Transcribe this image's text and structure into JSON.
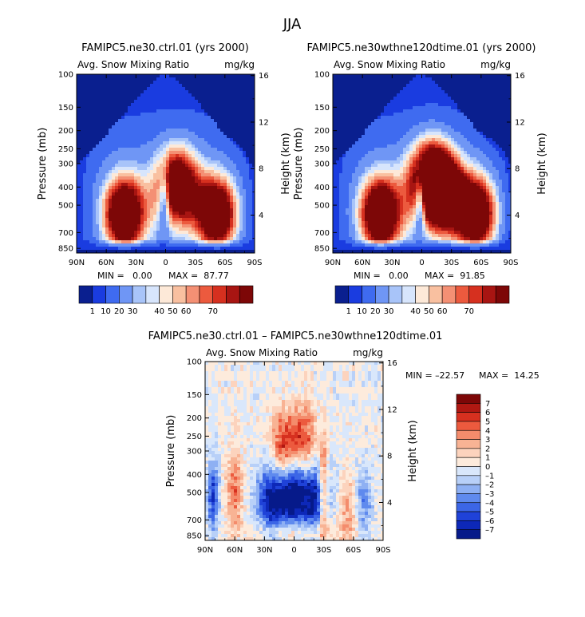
{
  "figure": {
    "season": "JJA"
  },
  "chart_data": [
    {
      "type": "heatmap",
      "title": "FAMIPC5.ne30.ctrl.01 (yrs 2000)",
      "variable": "Avg. Snow Mixing Ratio",
      "units": "mg/kg",
      "xlabel": "",
      "ylabel": "Pressure (mb)",
      "ylabel_right": "Height (km)",
      "x_ticks": [
        "90N",
        "60N",
        "30N",
        "0",
        "30S",
        "60S",
        "90S"
      ],
      "y_ticks": [
        "100",
        "150",
        "200",
        "250",
        "300",
        "400",
        "500",
        "700",
        "850"
      ],
      "y_ticks_right": [
        "16",
        "12",
        "8",
        "4"
      ],
      "min_text": "MIN =   0.00",
      "max_text": "MAX =  87.77",
      "colorbar_labels": [
        "1",
        "10",
        "20",
        "30",
        "40",
        "50",
        "60",
        "70"
      ],
      "colorbar_colors": [
        "#0a1f8f",
        "#1a3ce0",
        "#3f6bf0",
        "#6f96f5",
        "#a8c4f9",
        "#d7e5fc",
        "#fde9d8",
        "#f9c0a0",
        "#f49074",
        "#ec5a3e",
        "#d6301f",
        "#a81512",
        "#7d0707"
      ],
      "blobs": [
        {
          "lat": -52,
          "p": 560,
          "amp": 78
        },
        {
          "lat": -12,
          "p": 390,
          "amp": 74
        },
        {
          "lat": 42,
          "p": 560,
          "amp": 80
        }
      ]
    },
    {
      "type": "heatmap",
      "title": "FAMIPC5.ne30wthne120dtime.01 (yrs 2000)",
      "variable": "Avg. Snow Mixing Ratio",
      "units": "mg/kg",
      "xlabel": "",
      "ylabel": "Pressure (mb)",
      "ylabel_right": "Height (km)",
      "x_ticks": [
        "90N",
        "60N",
        "30N",
        "0",
        "30S",
        "60S",
        "90S"
      ],
      "y_ticks": [
        "100",
        "150",
        "200",
        "250",
        "300",
        "400",
        "500",
        "700",
        "850"
      ],
      "y_ticks_right": [
        "16",
        "12",
        "8",
        "4"
      ],
      "min_text": "MIN =   0.00",
      "max_text": "MAX =  91.85",
      "colorbar_labels": [
        "1",
        "10",
        "20",
        "30",
        "40",
        "50",
        "60",
        "70"
      ],
      "colorbar_colors": [
        "#0a1f8f",
        "#1a3ce0",
        "#3f6bf0",
        "#6f96f5",
        "#a8c4f9",
        "#d7e5fc",
        "#fde9d8",
        "#f9c0a0",
        "#f49074",
        "#ec5a3e",
        "#d6301f",
        "#a81512",
        "#7d0707"
      ],
      "blobs": [
        {
          "lat": -55,
          "p": 560,
          "amp": 80
        },
        {
          "lat": -22,
          "p": 430,
          "amp": 70
        },
        {
          "lat": -8,
          "p": 360,
          "amp": 78
        },
        {
          "lat": 42,
          "p": 560,
          "amp": 82
        }
      ]
    },
    {
      "type": "heatmap",
      "title": "FAMIPC5.ne30.ctrl.01 – FAMIPC5.ne30wthne120dtime.01",
      "variable": "Avg. Snow Mixing Ratio",
      "units": "mg/kg",
      "xlabel": "",
      "ylabel": "Pressure (mb)",
      "ylabel_right": "Height (km)",
      "x_ticks": [
        "90N",
        "60N",
        "30N",
        "0",
        "30S",
        "60S",
        "90S"
      ],
      "y_ticks": [
        "100",
        "150",
        "200",
        "250",
        "300",
        "400",
        "500",
        "700",
        "850"
      ],
      "y_ticks_right": [
        "16",
        "12",
        "8",
        "4"
      ],
      "min_text": "MIN = –22.57",
      "max_text": "MAX =  14.25",
      "colorbar_labels": [
        "7",
        "6",
        "5",
        "4",
        "3",
        "2",
        "1",
        "0",
        "–1",
        "–2",
        "–3",
        "–4",
        "–5",
        "–6",
        "–7"
      ],
      "colorbar_colors": [
        "#7d0707",
        "#b01812",
        "#d6301f",
        "#ec5a3e",
        "#f48c6c",
        "#f8b394",
        "#fcd3bd",
        "#fdebdc",
        "#d9e7fb",
        "#b8d0f8",
        "#8eb0f3",
        "#5f8aee",
        "#3c66e6",
        "#1f42d8",
        "#0d28b8",
        "#061a8a"
      ]
    }
  ]
}
